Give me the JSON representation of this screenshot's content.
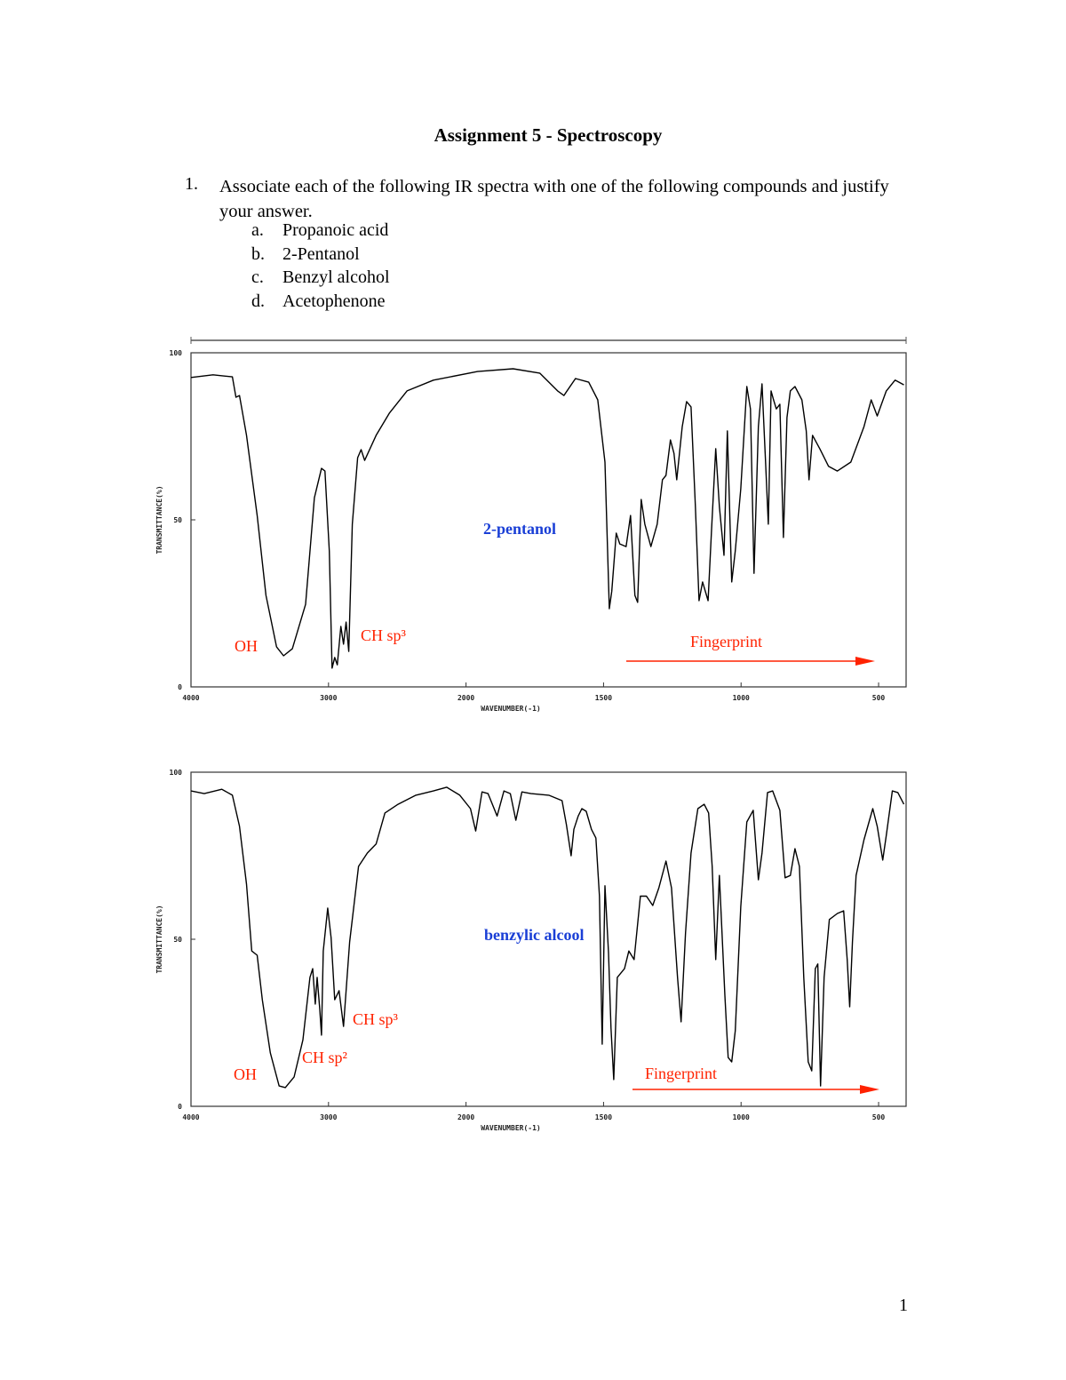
{
  "document": {
    "title": "Assignment 5 - Spectroscopy",
    "questions": [
      {
        "number": "1.",
        "text": "Associate each of the following IR spectra with one of the following compounds and justify your answer.",
        "options": [
          {
            "letter": "a.",
            "text": "Propanoic acid"
          },
          {
            "letter": "b.",
            "text": "2-Pentanol"
          },
          {
            "letter": "c.",
            "text": "Benzyl alcohol"
          },
          {
            "letter": "d.",
            "text": "Acetophenone"
          }
        ]
      }
    ],
    "page_number": "1"
  },
  "chart_data": [
    {
      "type": "line",
      "x_label": "WAVENUMBER(-1)",
      "y_label": "TRANSMITTANCE(%)",
      "color": "#000000",
      "xlim": [
        4000,
        400
      ],
      "ylim": [
        0,
        100
      ],
      "xticks": [
        4000,
        3000,
        2000,
        1500,
        1000,
        500
      ],
      "yticks": [
        0,
        50,
        100
      ],
      "x": [
        4000,
        3840,
        3699,
        3673,
        3647,
        3596,
        3519,
        3455,
        3378,
        3327,
        3263,
        3167,
        3103,
        3051,
        3026,
        2994,
        2974,
        2955,
        2936,
        2910,
        2891,
        2872,
        2853,
        2827,
        2788,
        2763,
        2737,
        2654,
        2558,
        2429,
        2237,
        1958,
        1829,
        1732,
        1667,
        1644,
        1602,
        1554,
        1521,
        1495,
        1479,
        1470,
        1454,
        1441,
        1418,
        1402,
        1386,
        1376,
        1363,
        1350,
        1328,
        1305,
        1286,
        1273,
        1257,
        1244,
        1234,
        1214,
        1198,
        1182,
        1166,
        1153,
        1140,
        1120,
        1108,
        1092,
        1079,
        1062,
        1050,
        1034,
        1021,
        1001,
        979,
        966,
        953,
        937,
        924,
        911,
        901,
        891,
        882,
        872,
        859,
        846,
        833,
        821,
        804,
        779,
        763,
        753,
        740,
        714,
        682,
        650,
        601,
        553,
        527,
        505,
        472,
        440,
        408
      ],
      "values": [
        92.6,
        93.4,
        92.8,
        86.7,
        87.2,
        75.3,
        51.3,
        27.4,
        12,
        9.3,
        11.4,
        24.7,
        56.6,
        65.4,
        64.6,
        40.7,
        5.6,
        8.8,
        6.6,
        18.1,
        12.8,
        19.4,
        10.6,
        48.7,
        68.6,
        71,
        67.8,
        75.3,
        81.9,
        88.6,
        91.8,
        94.4,
        95.2,
        93.9,
        88.6,
        87.2,
        92.3,
        91.2,
        85.9,
        67.3,
        23.4,
        28.7,
        46,
        42.8,
        42,
        51.3,
        27.4,
        25.3,
        56.1,
        48.7,
        42,
        48.7,
        62,
        63.3,
        73.9,
        69.9,
        62,
        77.9,
        85.4,
        83.8,
        54,
        25.8,
        31.4,
        25.8,
        46,
        71.3,
        54,
        39.4,
        76.6,
        31.4,
        40.7,
        59.3,
        89.9,
        83.2,
        34,
        77.9,
        90.7,
        67.3,
        48.7,
        88.6,
        85.9,
        83.2,
        84.6,
        44.7,
        80.6,
        88.6,
        89.9,
        85.9,
        76.6,
        62,
        75.3,
        71.3,
        66,
        64.6,
        67.3,
        77.9,
        85.9,
        81.1,
        88.6,
        91.8,
        90.4
      ],
      "annotations": [
        {
          "text": "OH",
          "color": "#ff2200"
        },
        {
          "text": "CH sp³",
          "color": "#ff2200"
        },
        {
          "text": "2-pentanol",
          "color": "#1a3fd6"
        },
        {
          "text": "Fingerprint",
          "color": "#ff2200"
        }
      ]
    },
    {
      "type": "line",
      "x_label": "WAVENUMBER(-1)",
      "y_label": "TRANSMITTANCE(%)",
      "color": "#000000",
      "xlim": [
        4000,
        400
      ],
      "ylim": [
        0,
        100
      ],
      "xticks": [
        4000,
        3000,
        2000,
        1500,
        1000,
        500
      ],
      "yticks": [
        0,
        50,
        100
      ],
      "x": [
        4000,
        3904,
        3776,
        3699,
        3647,
        3596,
        3558,
        3519,
        3481,
        3423,
        3359,
        3314,
        3250,
        3186,
        3135,
        3115,
        3096,
        3083,
        3064,
        3051,
        3038,
        3006,
        2981,
        2955,
        2923,
        2891,
        2846,
        2782,
        2718,
        2654,
        2590,
        2494,
        2365,
        2237,
        2141,
        2045,
        1984,
        1965,
        1942,
        1920,
        1887,
        1862,
        1839,
        1819,
        1797,
        1764,
        1699,
        1651,
        1635,
        1618,
        1608,
        1592,
        1579,
        1563,
        1544,
        1528,
        1515,
        1505,
        1495,
        1482,
        1473,
        1463,
        1450,
        1424,
        1408,
        1389,
        1366,
        1344,
        1321,
        1299,
        1273,
        1253,
        1231,
        1218,
        1202,
        1182,
        1157,
        1134,
        1118,
        1105,
        1092,
        1079,
        1059,
        1047,
        1034,
        1021,
        1001,
        979,
        956,
        937,
        924,
        904,
        885,
        859,
        840,
        821,
        804,
        788,
        772,
        756,
        743,
        730,
        721,
        711,
        698,
        679,
        650,
        627,
        614,
        605,
        595,
        582,
        553,
        521,
        505,
        485,
        472,
        450,
        430,
        408
      ],
      "values": [
        94.4,
        93.6,
        94.9,
        93.1,
        83.8,
        66.5,
        46.5,
        45.2,
        31.9,
        16,
        6.1,
        5.6,
        8.8,
        19.9,
        38.6,
        41.2,
        30.6,
        38.6,
        29.3,
        21.3,
        46.5,
        59.3,
        50.5,
        31.9,
        34.6,
        23.9,
        49.2,
        71.8,
        75.8,
        78.5,
        87.8,
        90.4,
        93.1,
        94.4,
        95.5,
        93.1,
        89.1,
        82.4,
        94.1,
        93.6,
        86.9,
        94.4,
        93.6,
        85.6,
        94.1,
        93.6,
        93.1,
        91.5,
        84.3,
        75,
        82.9,
        86.9,
        89.1,
        88.3,
        82.9,
        80.3,
        62.9,
        18.6,
        66,
        46,
        23.4,
        8,
        38.6,
        41.2,
        46.5,
        43.9,
        62.9,
        62.9,
        60.1,
        65.4,
        73.4,
        65.4,
        38.6,
        25.3,
        51.9,
        75.8,
        89.1,
        90.4,
        87.8,
        71.8,
        43.9,
        69.1,
        33.2,
        14.6,
        13.3,
        22.6,
        59.8,
        85.1,
        88.6,
        67.8,
        75.8,
        93.9,
        94.4,
        88.6,
        68.4,
        69.1,
        77.1,
        71.8,
        38.6,
        13.3,
        10.6,
        41.2,
        42.6,
        6.1,
        38.6,
        55.9,
        57.7,
        58.5,
        43.9,
        29.8,
        49.2,
        69.1,
        79.8,
        89.1,
        83.8,
        73.7,
        81.1,
        94.4,
        93.9,
        90.4
      ],
      "annotations": [
        {
          "text": "OH",
          "color": "#ff2200"
        },
        {
          "text": "CH sp²",
          "color": "#ff2200"
        },
        {
          "text": "CH sp³",
          "color": "#ff2200"
        },
        {
          "text": "benzylic alcool",
          "color": "#1a3fd6"
        },
        {
          "text": "Fingerprint",
          "color": "#ff2200"
        }
      ]
    }
  ]
}
